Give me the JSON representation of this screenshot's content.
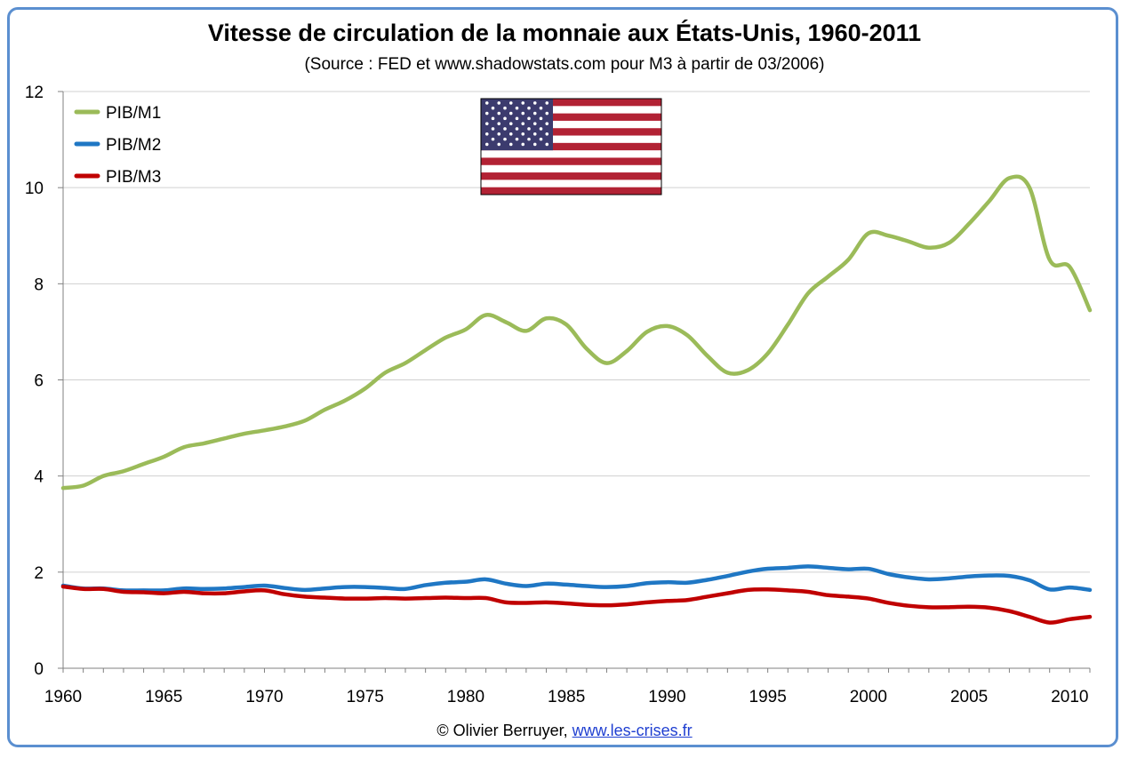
{
  "title": "Vitesse de circulation de la monnaie aux États-Unis, 1960-2011",
  "subtitle": "(Source : FED et www.shadowstats.com pour M3 à partir de 03/2006)",
  "credit": {
    "prefix": "© Olivier Berruyer,",
    "link": "www.les-crises.fr"
  },
  "colors": {
    "m1": "#9bbb59",
    "m2": "#1f77c4",
    "m3": "#c00000",
    "frame": "#5b8fd0"
  },
  "flag_icon": "us-flag-icon",
  "chart_data": {
    "type": "line",
    "title": "Vitesse de circulation de la monnaie aux États-Unis, 1960-2011",
    "subtitle": "(Source : FED et www.shadowstats.com pour M3 à partir de 03/2006)",
    "xlim": [
      1960,
      2011
    ],
    "ylim": [
      0,
      12
    ],
    "xticks": [
      1960,
      1965,
      1970,
      1975,
      1980,
      1985,
      1990,
      1995,
      2000,
      2005,
      2010
    ],
    "yticks": [
      0,
      2,
      4,
      6,
      8,
      10,
      12
    ],
    "grid": true,
    "legend": "top-left",
    "x": [
      1960,
      1961,
      1962,
      1963,
      1964,
      1965,
      1966,
      1967,
      1968,
      1969,
      1970,
      1971,
      1972,
      1973,
      1974,
      1975,
      1976,
      1977,
      1978,
      1979,
      1980,
      1981,
      1982,
      1983,
      1984,
      1985,
      1986,
      1987,
      1988,
      1989,
      1990,
      1991,
      1992,
      1993,
      1994,
      1995,
      1996,
      1997,
      1998,
      1999,
      2000,
      2001,
      2002,
      2003,
      2004,
      2005,
      2006,
      2007,
      2008,
      2009,
      2010,
      2011
    ],
    "series": [
      {
        "name": "PIB/M1",
        "values": [
          3.75,
          3.8,
          4.0,
          4.1,
          4.25,
          4.4,
          4.6,
          4.68,
          4.78,
          4.88,
          4.95,
          5.03,
          5.15,
          5.38,
          5.57,
          5.82,
          6.15,
          6.35,
          6.62,
          6.88,
          7.05,
          7.35,
          7.2,
          7.02,
          7.28,
          7.15,
          6.65,
          6.35,
          6.6,
          7.0,
          7.12,
          6.93,
          6.5,
          6.15,
          6.2,
          6.55,
          7.15,
          7.8,
          8.15,
          8.5,
          9.05,
          9.0,
          8.88,
          8.75,
          8.85,
          9.25,
          9.72,
          10.2,
          10.0,
          8.5,
          8.35,
          7.45
        ]
      },
      {
        "name": "PIB/M2",
        "values": [
          1.72,
          1.66,
          1.66,
          1.62,
          1.62,
          1.62,
          1.66,
          1.65,
          1.66,
          1.69,
          1.72,
          1.67,
          1.63,
          1.66,
          1.69,
          1.69,
          1.67,
          1.65,
          1.73,
          1.78,
          1.8,
          1.85,
          1.76,
          1.71,
          1.76,
          1.74,
          1.71,
          1.69,
          1.71,
          1.77,
          1.79,
          1.78,
          1.84,
          1.92,
          2.01,
          2.07,
          2.09,
          2.12,
          2.09,
          2.06,
          2.07,
          1.96,
          1.89,
          1.85,
          1.87,
          1.91,
          1.93,
          1.92,
          1.83,
          1.64,
          1.68,
          1.63
        ]
      },
      {
        "name": "PIB/M3",
        "values": [
          1.7,
          1.65,
          1.65,
          1.59,
          1.58,
          1.56,
          1.59,
          1.56,
          1.56,
          1.6,
          1.62,
          1.54,
          1.49,
          1.47,
          1.45,
          1.45,
          1.46,
          1.45,
          1.46,
          1.47,
          1.46,
          1.46,
          1.37,
          1.36,
          1.37,
          1.35,
          1.32,
          1.31,
          1.33,
          1.37,
          1.4,
          1.42,
          1.49,
          1.56,
          1.63,
          1.64,
          1.62,
          1.59,
          1.52,
          1.49,
          1.45,
          1.36,
          1.3,
          1.27,
          1.27,
          1.28,
          1.26,
          1.19,
          1.07,
          0.95,
          1.02,
          1.07
        ]
      }
    ]
  }
}
